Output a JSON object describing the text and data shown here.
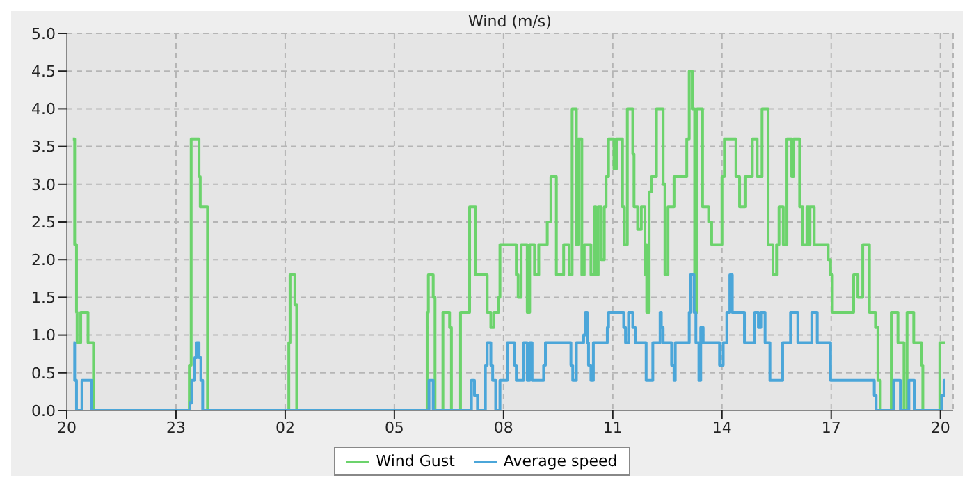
{
  "chart_data": {
    "type": "step",
    "title": "Wind (m/s)",
    "xlim": [
      "--01-01T20:00",
      "--01-02T20:21"
    ],
    "xticks": [
      {
        "value": "--01-01T20:00",
        "label": "20"
      },
      {
        "value": "--01-01T23:00",
        "label": "23"
      },
      {
        "value": "--01-02T02:00",
        "label": "02"
      },
      {
        "value": "--01-02T05:00",
        "label": "05"
      },
      {
        "value": "--01-02T08:00",
        "label": "08"
      },
      {
        "value": "--01-02T11:00",
        "label": "11"
      },
      {
        "value": "--01-02T14:00",
        "label": "14"
      },
      {
        "value": "--01-02T17:00",
        "label": "17"
      },
      {
        "value": "--01-02T20:00",
        "label": "20"
      }
    ],
    "ylim": [
      0,
      5
    ],
    "yticks": [
      {
        "value": 0,
        "label": "0.0"
      },
      0.5,
      {
        "value": 1,
        "label": "1.0"
      },
      1.5,
      {
        "value": 2,
        "label": "2.0"
      },
      2.5,
      {
        "value": 3,
        "label": "3.0"
      },
      3.5,
      {
        "value": 4,
        "label": "4.0"
      },
      4.5,
      {
        "value": 5,
        "label": "5.0"
      }
    ],
    "grid": true,
    "legend": "bottom",
    "marker": "none",
    "line_style": "solid",
    "series": [
      {
        "name": "Wind Gust",
        "color": "#6cd36c",
        "x": [
          "--01-01T20:10",
          "--01-01T20:13",
          "--01-01T20:16",
          "--01-01T20:17",
          "--01-01T20:23",
          "--01-01T20:35",
          "--01-01T20:44",
          "--01-01T23:22",
          "--01-01T23:25",
          "--01-01T23:38",
          "--01-01T23:40",
          "--01-01T23:52",
          "--01-02T02:06",
          "--01-02T02:08",
          "--01-02T02:16",
          "--01-02T02:19",
          "--01-02T05:54",
          "--01-02T05:56",
          "--01-02T06:04",
          "--01-02T06:07",
          "--01-02T06:20",
          "--01-02T06:31",
          "--01-02T06:34",
          "--01-02T06:49",
          "--01-02T07:04",
          "--01-02T07:14",
          "--01-02T07:33",
          "--01-02T07:39",
          "--01-02T07:44",
          "--01-02T07:52",
          "--01-02T07:54",
          "--01-02T08:21",
          "--01-02T08:24",
          "--01-02T08:29",
          "--01-02T08:39",
          "--01-02T08:43",
          "--01-02T08:51",
          "--01-02T08:58",
          "--01-02T09:12",
          "--01-02T09:18",
          "--01-02T09:27",
          "--01-02T09:39",
          "--01-02T09:48",
          "--01-02T09:53",
          "--01-02T10:00",
          "--01-02T10:03",
          "--01-02T10:09",
          "--01-02T10:13",
          "--01-02T10:24",
          "--01-02T10:30",
          "--01-02T10:32",
          "--01-02T10:36",
          "--01-02T10:41",
          "--01-02T10:46",
          "--01-02T10:49",
          "--01-02T10:53",
          "--01-02T11:02",
          "--01-02T11:06",
          "--01-02T11:16",
          "--01-02T11:19",
          "--01-02T11:24",
          "--01-02T11:33",
          "--01-02T11:35",
          "--01-02T11:41",
          "--01-02T11:47",
          "--01-02T11:53",
          "--01-02T11:54",
          "--01-02T11:56",
          "--01-02T12:00",
          "--01-02T12:04",
          "--01-02T12:12",
          "--01-02T12:23",
          "--01-02T12:26",
          "--01-02T12:31",
          "--01-02T12:41",
          "--01-02T13:02",
          "--01-02T13:06",
          "--01-02T13:11",
          "--01-02T13:15",
          "--01-02T13:19",
          "--01-02T13:28",
          "--01-02T13:38",
          "--01-02T13:43",
          "--01-02T14:00",
          "--01-02T14:04",
          "--01-02T14:23",
          "--01-02T14:29",
          "--01-02T14:38",
          "--01-02T14:50",
          "--01-02T14:58",
          "--01-02T15:06",
          "--01-02T15:16",
          "--01-02T15:24",
          "--01-02T15:30",
          "--01-02T15:34",
          "--01-02T15:41",
          "--01-02T15:47",
          "--01-02T15:55",
          "--01-02T15:58",
          "--01-02T16:08",
          "--01-02T16:13",
          "--01-02T16:20",
          "--01-02T16:23",
          "--01-02T16:25",
          "--01-02T16:32",
          "--01-02T16:55",
          "--01-02T16:59",
          "--01-02T17:02",
          "--01-02T17:37",
          "--01-02T17:44",
          "--01-02T17:52",
          "--01-02T18:03",
          "--01-02T18:13",
          "--01-02T18:17",
          "--01-02T18:21",
          "--01-02T18:39",
          "--01-02T18:50",
          "--01-02T19:00",
          "--01-02T19:05",
          "--01-02T19:16",
          "--01-02T19:29",
          "--01-02T19:31",
          "--01-02T19:59",
          "--01-02T20:08"
        ],
        "values": [
          3.6,
          2.2,
          1.3,
          0.9,
          1.3,
          0.9,
          0,
          0.6,
          3.6,
          3.1,
          2.7,
          0,
          0.9,
          1.8,
          1.4,
          0,
          1.3,
          1.8,
          1.5,
          0,
          1.3,
          1.1,
          0,
          1.3,
          2.7,
          1.8,
          1.3,
          1.1,
          1.3,
          1.5,
          2.2,
          1.8,
          1.5,
          2.2,
          1.3,
          2.2,
          1.8,
          2.2,
          2.5,
          3.1,
          1.8,
          2.2,
          1.8,
          4.0,
          2.2,
          3.6,
          1.8,
          2.2,
          1.8,
          2.7,
          1.8,
          2.7,
          2.0,
          2.7,
          3.1,
          3.6,
          3.2,
          3.6,
          2.7,
          2.2,
          4.0,
          3.4,
          2.7,
          2.4,
          2.7,
          1.8,
          2.2,
          1.3,
          2.9,
          3.1,
          4.0,
          3.0,
          1.8,
          2.7,
          3.1,
          3.6,
          4.5,
          4.0,
          1.3,
          4.0,
          2.7,
          2.5,
          2.2,
          3.1,
          3.6,
          3.1,
          2.7,
          3.1,
          3.6,
          3.1,
          4.0,
          2.2,
          1.8,
          2.2,
          2.7,
          2.2,
          3.6,
          3.1,
          3.6,
          2.7,
          2.2,
          2.7,
          2.2,
          2.7,
          2.2,
          2.0,
          1.8,
          1.3,
          1.8,
          1.5,
          2.2,
          1.3,
          1.1,
          0.4,
          0,
          1.3,
          0.9,
          0,
          1.3,
          0.9,
          0.6,
          0,
          0.9,
          0.9
        ]
      },
      {
        "name": "Average speed",
        "color": "#4ba6d9",
        "x": [
          "--01-01T20:11",
          "--01-01T20:13",
          "--01-01T20:16",
          "--01-01T20:25",
          "--01-01T20:41",
          "--01-01T23:23",
          "--01-01T23:26",
          "--01-01T23:31",
          "--01-01T23:34",
          "--01-01T23:38",
          "--01-01T23:41",
          "--01-01T23:44",
          "--01-02T05:57",
          "--01-02T06:04",
          "--01-02T07:07",
          "--01-02T07:12",
          "--01-02T07:17",
          "--01-02T07:30",
          "--01-02T07:33",
          "--01-02T07:39",
          "--01-02T07:42",
          "--01-02T07:47",
          "--01-02T07:54",
          "--01-02T08:06",
          "--01-02T08:18",
          "--01-02T08:21",
          "--01-02T08:33",
          "--01-02T08:39",
          "--01-02T08:43",
          "--01-02T08:47",
          "--01-02T09:06",
          "--01-02T09:09",
          "--01-02T09:51",
          "--01-02T09:54",
          "--01-02T10:00",
          "--01-02T10:12",
          "--01-02T10:15",
          "--01-02T10:18",
          "--01-02T10:20",
          "--01-02T10:24",
          "--01-02T10:28",
          "--01-02T10:36",
          "--01-02T10:51",
          "--01-02T10:53",
          "--01-02T11:18",
          "--01-02T11:21",
          "--01-02T11:26",
          "--01-02T11:33",
          "--01-02T11:37",
          "--01-02T11:55",
          "--01-02T12:06",
          "--01-02T12:18",
          "--01-02T12:20",
          "--01-02T12:23",
          "--01-02T12:37",
          "--01-02T12:41",
          "--01-02T12:43",
          "--01-02T13:06",
          "--01-02T13:08",
          "--01-02T13:14",
          "--01-02T13:17",
          "--01-02T13:22",
          "--01-02T13:25",
          "--01-02T13:29",
          "--01-02T13:56",
          "--01-02T14:02",
          "--01-02T14:08",
          "--01-02T14:13",
          "--01-02T14:17",
          "--01-02T14:37",
          "--01-02T14:54",
          "--01-02T15:00",
          "--01-02T15:04",
          "--01-02T15:11",
          "--01-02T15:19",
          "--01-02T15:21",
          "--01-02T15:40",
          "--01-02T15:53",
          "--01-02T16:05",
          "--01-02T16:28",
          "--01-02T16:37",
          "--01-02T16:59",
          "--01-02T18:11",
          "--01-02T18:14",
          "--01-02T18:43",
          "--01-02T18:54",
          "--01-02T19:08",
          "--01-02T19:17",
          "--01-02T20:02",
          "--01-02T20:06",
          "--01-02T20:08"
        ],
        "values": [
          0.9,
          0.4,
          0,
          0.4,
          0,
          0.1,
          0.4,
          0.7,
          0.9,
          0.7,
          0.4,
          0,
          0.4,
          0,
          0.4,
          0.2,
          0,
          0.6,
          0.9,
          0.6,
          0.4,
          0,
          0.4,
          0.9,
          0.6,
          0.4,
          0.9,
          0.4,
          0.9,
          0.4,
          0.6,
          0.9,
          0.6,
          0.4,
          0.9,
          1.0,
          1.3,
          0.9,
          0.6,
          0.4,
          0.9,
          0.9,
          1.1,
          1.3,
          1.1,
          0.9,
          1.3,
          1.1,
          0.9,
          0.4,
          0.9,
          1.3,
          1.1,
          0.9,
          0.6,
          0.4,
          0.9,
          1.3,
          1.8,
          1.3,
          0.9,
          0.4,
          1.1,
          0.9,
          0.6,
          0.9,
          1.3,
          1.8,
          1.3,
          0.9,
          1.3,
          1.1,
          1.3,
          0.9,
          0.4,
          0.4,
          0.9,
          1.3,
          0.9,
          1.3,
          0.9,
          0.4,
          0.2,
          0,
          0.4,
          0,
          0.4,
          0,
          0.2,
          0.4,
          0.4
        ]
      }
    ]
  }
}
